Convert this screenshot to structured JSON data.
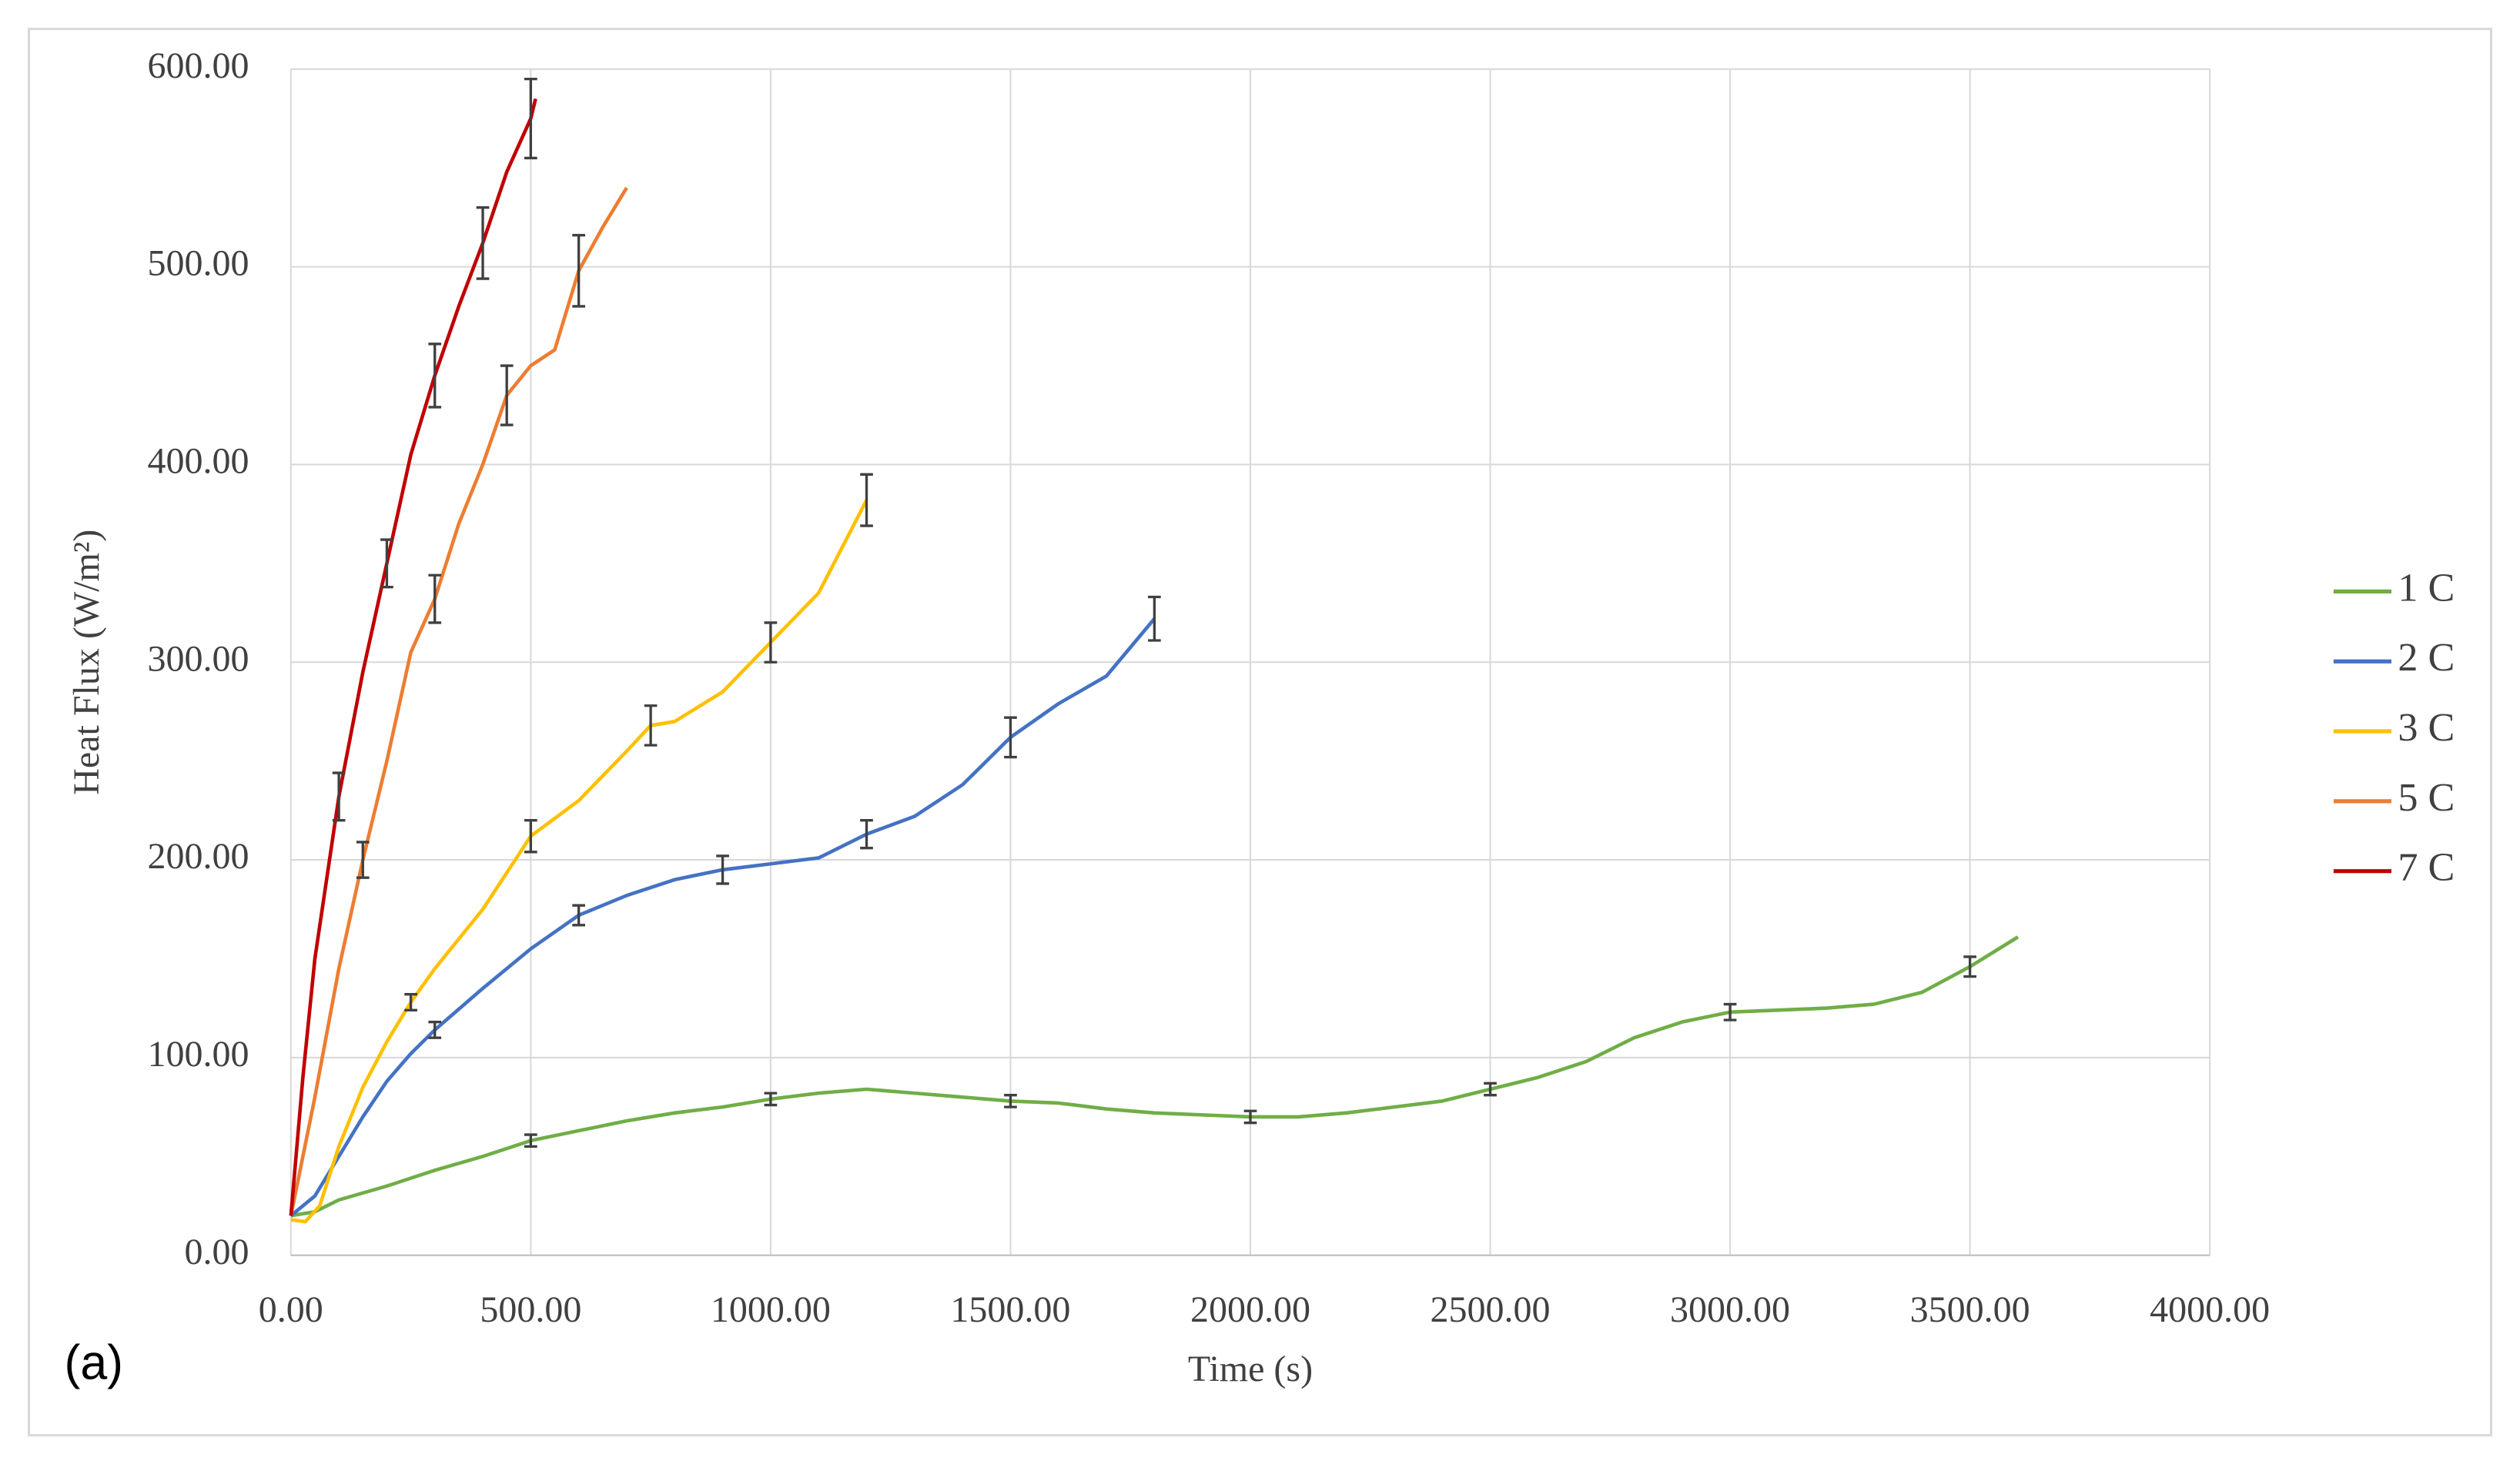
{
  "chart_data": {
    "type": "line",
    "xlabel": "Time (s)",
    "ylabel": "Heat Flux (W/m²)",
    "annotation": "(a)",
    "xlim": [
      0,
      4000
    ],
    "ylim": [
      0,
      600
    ],
    "xticks": [
      {
        "value": 0,
        "label": "0.00"
      },
      {
        "value": 500,
        "label": "500.00"
      },
      {
        "value": 1000,
        "label": "1000.00"
      },
      {
        "value": 1500,
        "label": "1500.00"
      },
      {
        "value": 2000,
        "label": "2000.00"
      },
      {
        "value": 2500,
        "label": "2500.00"
      },
      {
        "value": 3000,
        "label": "3000.00"
      },
      {
        "value": 3500,
        "label": "3500.00"
      },
      {
        "value": 4000,
        "label": "4000.00"
      }
    ],
    "yticks": [
      {
        "value": 0,
        "label": "0.00"
      },
      {
        "value": 100,
        "label": "100.00"
      },
      {
        "value": 200,
        "label": "200.00"
      },
      {
        "value": 300,
        "label": "300.00"
      },
      {
        "value": 400,
        "label": "400.00"
      },
      {
        "value": 500,
        "label": "500.00"
      },
      {
        "value": 600,
        "label": "600.00"
      }
    ],
    "grid": true,
    "legend": "right",
    "series": [
      {
        "name": "1 C",
        "color": "#70ad47",
        "x": [
          0,
          50,
          100,
          200,
          300,
          400,
          500,
          600,
          700,
          800,
          900,
          1000,
          1100,
          1200,
          1300,
          1400,
          1500,
          1600,
          1700,
          1800,
          1900,
          2000,
          2100,
          2200,
          2300,
          2400,
          2500,
          2600,
          2700,
          2800,
          2900,
          3000,
          3100,
          3200,
          3300,
          3400,
          3500,
          3600
        ],
        "values": [
          20,
          22,
          28,
          35,
          43,
          50,
          58,
          63,
          68,
          72,
          75,
          79,
          82,
          84,
          82,
          80,
          78,
          77,
          74,
          72,
          71,
          70,
          70,
          72,
          75,
          78,
          84,
          90,
          98,
          110,
          118,
          123,
          124,
          125,
          127,
          133,
          146,
          161
        ],
        "error_bars": {
          "x": [
            500,
            1000,
            1500,
            2000,
            2500,
            3000,
            3500
          ],
          "values": [
            58,
            79,
            78,
            70,
            84,
            123,
            146
          ],
          "errors": [
            3,
            3,
            3,
            3,
            3,
            4,
            5
          ]
        }
      },
      {
        "name": "2 C",
        "color": "#4472c4",
        "x": [
          0,
          50,
          100,
          150,
          200,
          250,
          300,
          400,
          500,
          600,
          700,
          800,
          900,
          1000,
          1100,
          1200,
          1300,
          1400,
          1500,
          1600,
          1700,
          1800
        ],
        "values": [
          20,
          30,
          50,
          70,
          88,
          102,
          114,
          135,
          155,
          172,
          182,
          190,
          195,
          198,
          201,
          213,
          222,
          238,
          262,
          279,
          293,
          322
        ],
        "error_bars": {
          "x": [
            300,
            600,
            900,
            1200,
            1500,
            1800
          ],
          "values": [
            114,
            172,
            195,
            213,
            262,
            322
          ],
          "errors": [
            4,
            5,
            7,
            7,
            10,
            11
          ]
        }
      },
      {
        "name": "3 C",
        "color": "#ffc000",
        "x": [
          0,
          30,
          60,
          100,
          150,
          200,
          250,
          300,
          400,
          500,
          600,
          700,
          750,
          800,
          900,
          1000,
          1100,
          1200
        ],
        "values": [
          18,
          17,
          25,
          55,
          85,
          108,
          128,
          145,
          175,
          212,
          230,
          255,
          268,
          270,
          285,
          310,
          335,
          382
        ],
        "error_bars": {
          "x": [
            250,
            500,
            750,
            1000,
            1200
          ],
          "values": [
            128,
            212,
            268,
            310,
            382
          ],
          "errors": [
            4,
            8,
            10,
            10,
            13
          ]
        }
      },
      {
        "name": "5 C",
        "color": "#ed7d31",
        "x": [
          0,
          50,
          100,
          150,
          200,
          250,
          300,
          350,
          400,
          450,
          500,
          550,
          600,
          650,
          700
        ],
        "values": [
          20,
          80,
          145,
          200,
          250,
          305,
          332,
          370,
          400,
          435,
          450,
          458,
          498,
          520,
          540
        ],
        "error_bars": {
          "x": [
            150,
            300,
            450,
            600
          ],
          "values": [
            200,
            332,
            435,
            498
          ],
          "errors": [
            9,
            12,
            15,
            18
          ]
        }
      },
      {
        "name": "7 C",
        "color": "#c00000",
        "x": [
          0,
          25,
          50,
          100,
          150,
          200,
          250,
          300,
          350,
          400,
          450,
          500,
          510
        ],
        "values": [
          20,
          90,
          150,
          232,
          295,
          350,
          405,
          445,
          480,
          512,
          548,
          575,
          585
        ],
        "error_bars": {
          "x": [
            100,
            200,
            300,
            400,
            500
          ],
          "values": [
            232,
            350,
            445,
            512,
            575
          ],
          "errors": [
            12,
            12,
            16,
            18,
            20
          ]
        }
      }
    ]
  }
}
